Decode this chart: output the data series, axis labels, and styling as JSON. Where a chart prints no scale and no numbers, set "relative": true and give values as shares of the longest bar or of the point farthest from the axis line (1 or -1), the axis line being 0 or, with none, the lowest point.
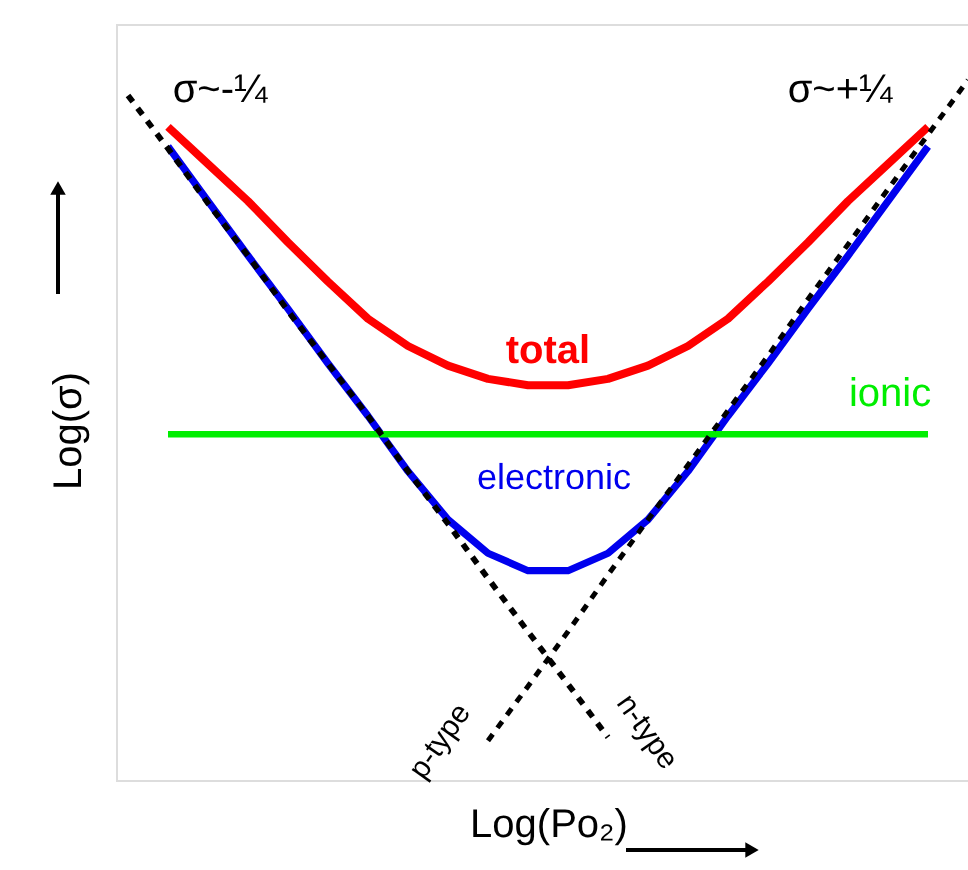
{
  "chart_data": {
    "type": "line",
    "relative": true,
    "xlabel": "Log(Po₂)",
    "ylabel": "Log(σ)",
    "tick_labels": false,
    "grid": false,
    "marker": "none",
    "annotations": [
      "σ~-¼",
      "σ~+¼"
    ],
    "categories": [
      null,
      null,
      null,
      null,
      null,
      null,
      null,
      null,
      null,
      null,
      null,
      null,
      null,
      null,
      null,
      null,
      null,
      null,
      null,
      null,
      null,
      null
    ],
    "series": [
      {
        "name": "total",
        "color": "#ff0000",
        "line_style": "solid",
        "values": [
          null,
          0.933,
          0.88,
          0.827,
          0.768,
          0.712,
          0.659,
          0.62,
          0.592,
          0.573,
          0.564,
          0.564,
          0.573,
          0.592,
          0.62,
          0.659,
          0.712,
          0.768,
          0.827,
          0.88,
          0.933,
          null
        ]
      },
      {
        "name": "electronic",
        "color": "#0000ee",
        "line_style": "solid",
        "values": [
          null,
          0.905,
          0.827,
          0.749,
          0.673,
          0.595,
          0.52,
          0.441,
          0.372,
          0.324,
          0.299,
          0.299,
          0.324,
          0.372,
          0.441,
          0.52,
          0.595,
          0.673,
          0.749,
          0.827,
          0.905,
          null
        ]
      },
      {
        "name": "ionic",
        "color": "#00ee00",
        "line_style": "solid",
        "values": [
          null,
          0.494,
          0.494,
          0.494,
          0.494,
          0.494,
          0.494,
          0.494,
          0.494,
          0.494,
          0.494,
          0.494,
          0.494,
          0.494,
          0.494,
          0.494,
          0.494,
          0.494,
          0.494,
          0.494,
          0.494,
          null
        ]
      },
      {
        "name": "n-type",
        "color": "#000000",
        "line_style": "dashed",
        "values": [
          0.978,
          0.902,
          0.824,
          0.749,
          0.67,
          0.595,
          0.52,
          0.441,
          0.366,
          0.288,
          0.212,
          0.137,
          0.061,
          null,
          null,
          null,
          null,
          null,
          null,
          null,
          null,
          null
        ]
      },
      {
        "name": "p-type",
        "color": "#000000",
        "line_style": "dashed",
        "values": [
          null,
          null,
          null,
          null,
          null,
          null,
          null,
          null,
          null,
          0.056,
          0.134,
          0.212,
          0.293,
          0.372,
          0.45,
          0.528,
          0.606,
          0.687,
          0.765,
          0.844,
          0.922,
          1.0
        ]
      }
    ]
  }
}
